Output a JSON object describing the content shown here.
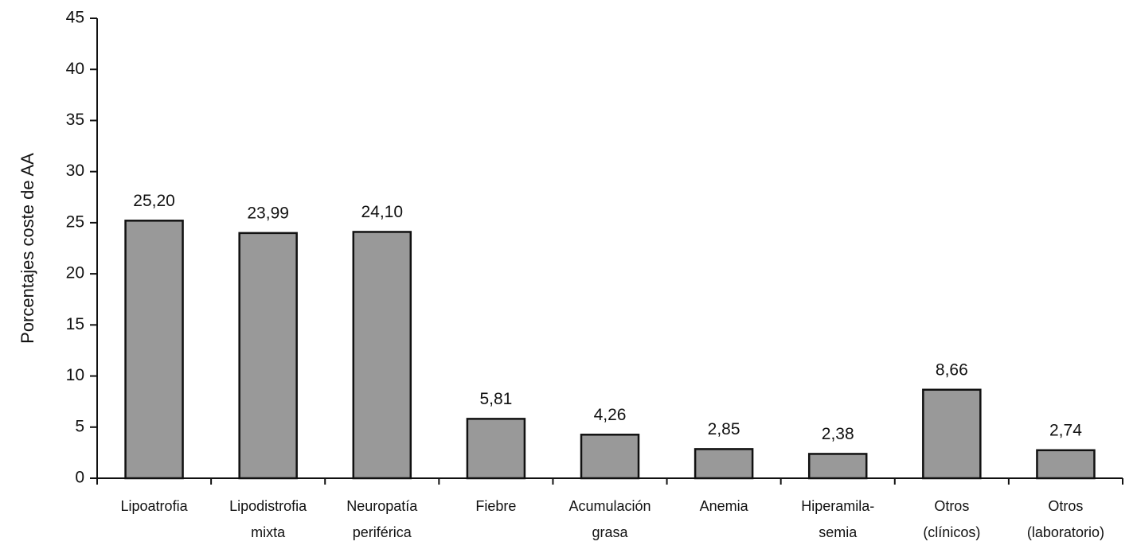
{
  "chart_data": {
    "type": "bar",
    "y_label": "Porcentajes coste de AA",
    "categories": [
      [
        "Lipoatrofia"
      ],
      [
        "Lipodistrofia",
        "mixta"
      ],
      [
        "Neuropatía",
        "periférica"
      ],
      [
        "Fiebre"
      ],
      [
        "Acumulación",
        "grasa"
      ],
      [
        "Anemia"
      ],
      [
        "Hiperamila-",
        "semia"
      ],
      [
        "Otros",
        "(clínicos)"
      ],
      [
        "Otros",
        "(laboratorio)"
      ]
    ],
    "values": [
      25.2,
      23.99,
      24.1,
      5.81,
      4.26,
      2.85,
      2.38,
      8.66,
      2.74
    ],
    "value_labels": [
      "25,20",
      "23,99",
      "24,10",
      "5,81",
      "4,26",
      "2,85",
      "2,38",
      "8,66",
      "2,74"
    ],
    "color": "#999999",
    "ylim": [
      0,
      45
    ],
    "yticks": [
      0,
      5,
      10,
      15,
      20,
      25,
      30,
      35,
      40,
      45
    ],
    "grid": false
  }
}
